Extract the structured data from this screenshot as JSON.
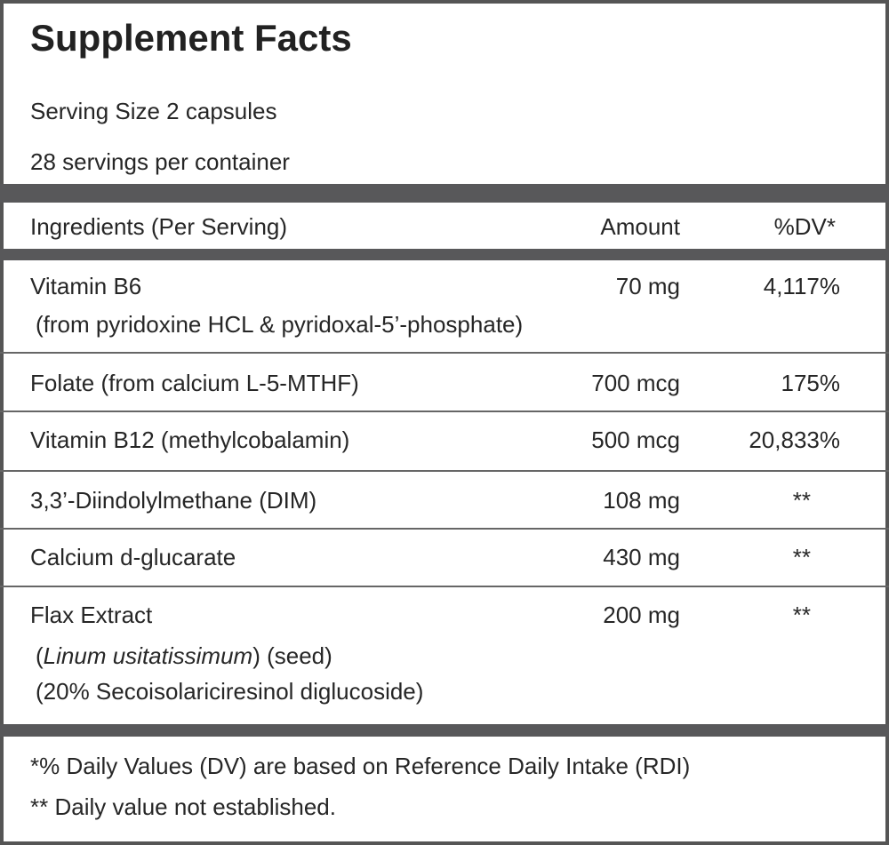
{
  "title": "Supplement Facts",
  "serving_size": "Serving Size 2 capsules",
  "servings_per_container": "28 servings per container",
  "header": {
    "ingredients": "Ingredients (Per Serving)",
    "amount": "Amount",
    "dv": "%DV*"
  },
  "rows": [
    {
      "name": "Vitamin B6",
      "detail": "(from pyridoxine HCL & pyridoxal-5’-phosphate)",
      "amount": "70 mg",
      "dv": "4,117%"
    },
    {
      "name": "Folate (from calcium L-5-MTHF)",
      "amount": "700 mcg",
      "dv": "175%"
    },
    {
      "name": "Vitamin B12 (methylcobalamin)",
      "amount": "500 mcg",
      "dv": "20,833%"
    },
    {
      "name": "3,3’-Diindolylmethane (DIM)",
      "amount": "108 mg",
      "dv": "**"
    },
    {
      "name": "Calcium d-glucarate",
      "amount": "430 mg",
      "dv": "**"
    },
    {
      "name": "Flax Extract",
      "detail_italic": "Linum usitatissimum",
      "detail_rest": ") (seed)",
      "detail_open": "(",
      "detail2": "(20% Secoisolariciresinol diglucoside)",
      "amount": "200 mg",
      "dv": "**"
    }
  ],
  "footnotes": [
    "*% Daily Values (DV) are based on Reference Daily Intake (RDI)",
    "** Daily value not established."
  ],
  "colors": {
    "bars": "#58585a",
    "text": "#262626"
  }
}
